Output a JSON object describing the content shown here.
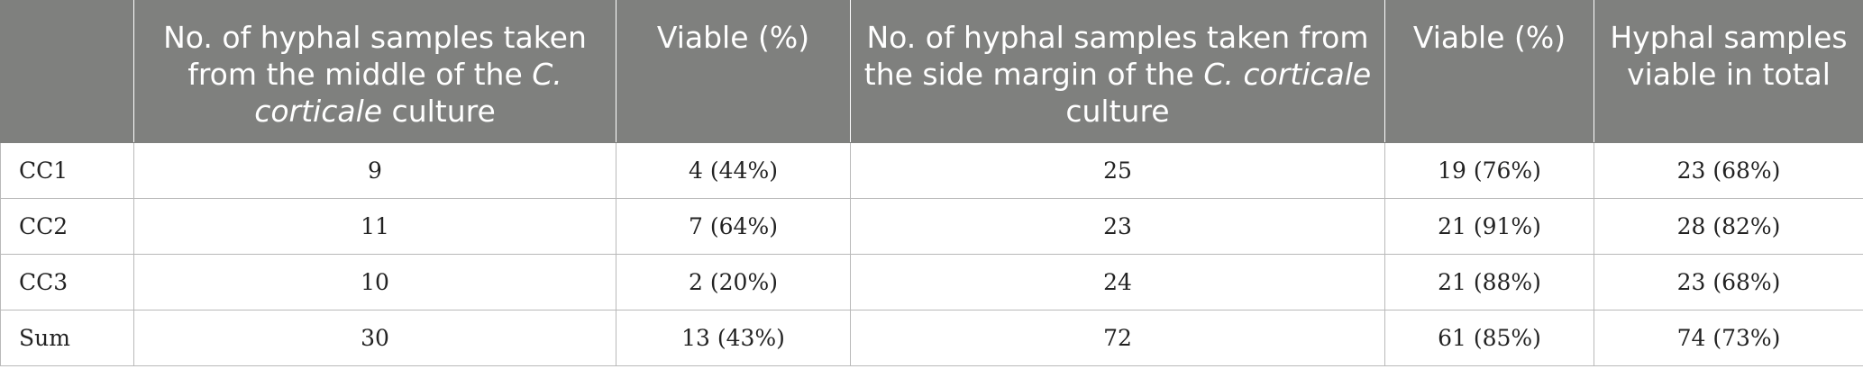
{
  "table": {
    "headers": [
      {
        "pre": "",
        "em": "",
        "post": ""
      },
      {
        "pre": "No. of hyphal samples taken from the middle of the ",
        "em": "C. corticale",
        "post": " culture"
      },
      {
        "pre": "Viable (%)",
        "em": "",
        "post": ""
      },
      {
        "pre": "No. of hyphal samples taken from the side margin of the ",
        "em": "C. corticale",
        "post": " culture"
      },
      {
        "pre": "Viable (%)",
        "em": "",
        "post": ""
      },
      {
        "pre": "Hyphal samples viable in total",
        "em": "",
        "post": ""
      }
    ],
    "rows": [
      [
        "CC1",
        "9",
        "4 (44%)",
        "25",
        "19 (76%)",
        "23 (68%)"
      ],
      [
        "CC2",
        "11",
        "7 (64%)",
        "23",
        "21 (91%)",
        "28 (82%)"
      ],
      [
        "CC3",
        "10",
        "2 (20%)",
        "24",
        "21 (88%)",
        "23 (68%)"
      ],
      [
        "Sum",
        "30",
        "13 (43%)",
        "72",
        "61 (85%)",
        "74 (73%)"
      ]
    ]
  }
}
